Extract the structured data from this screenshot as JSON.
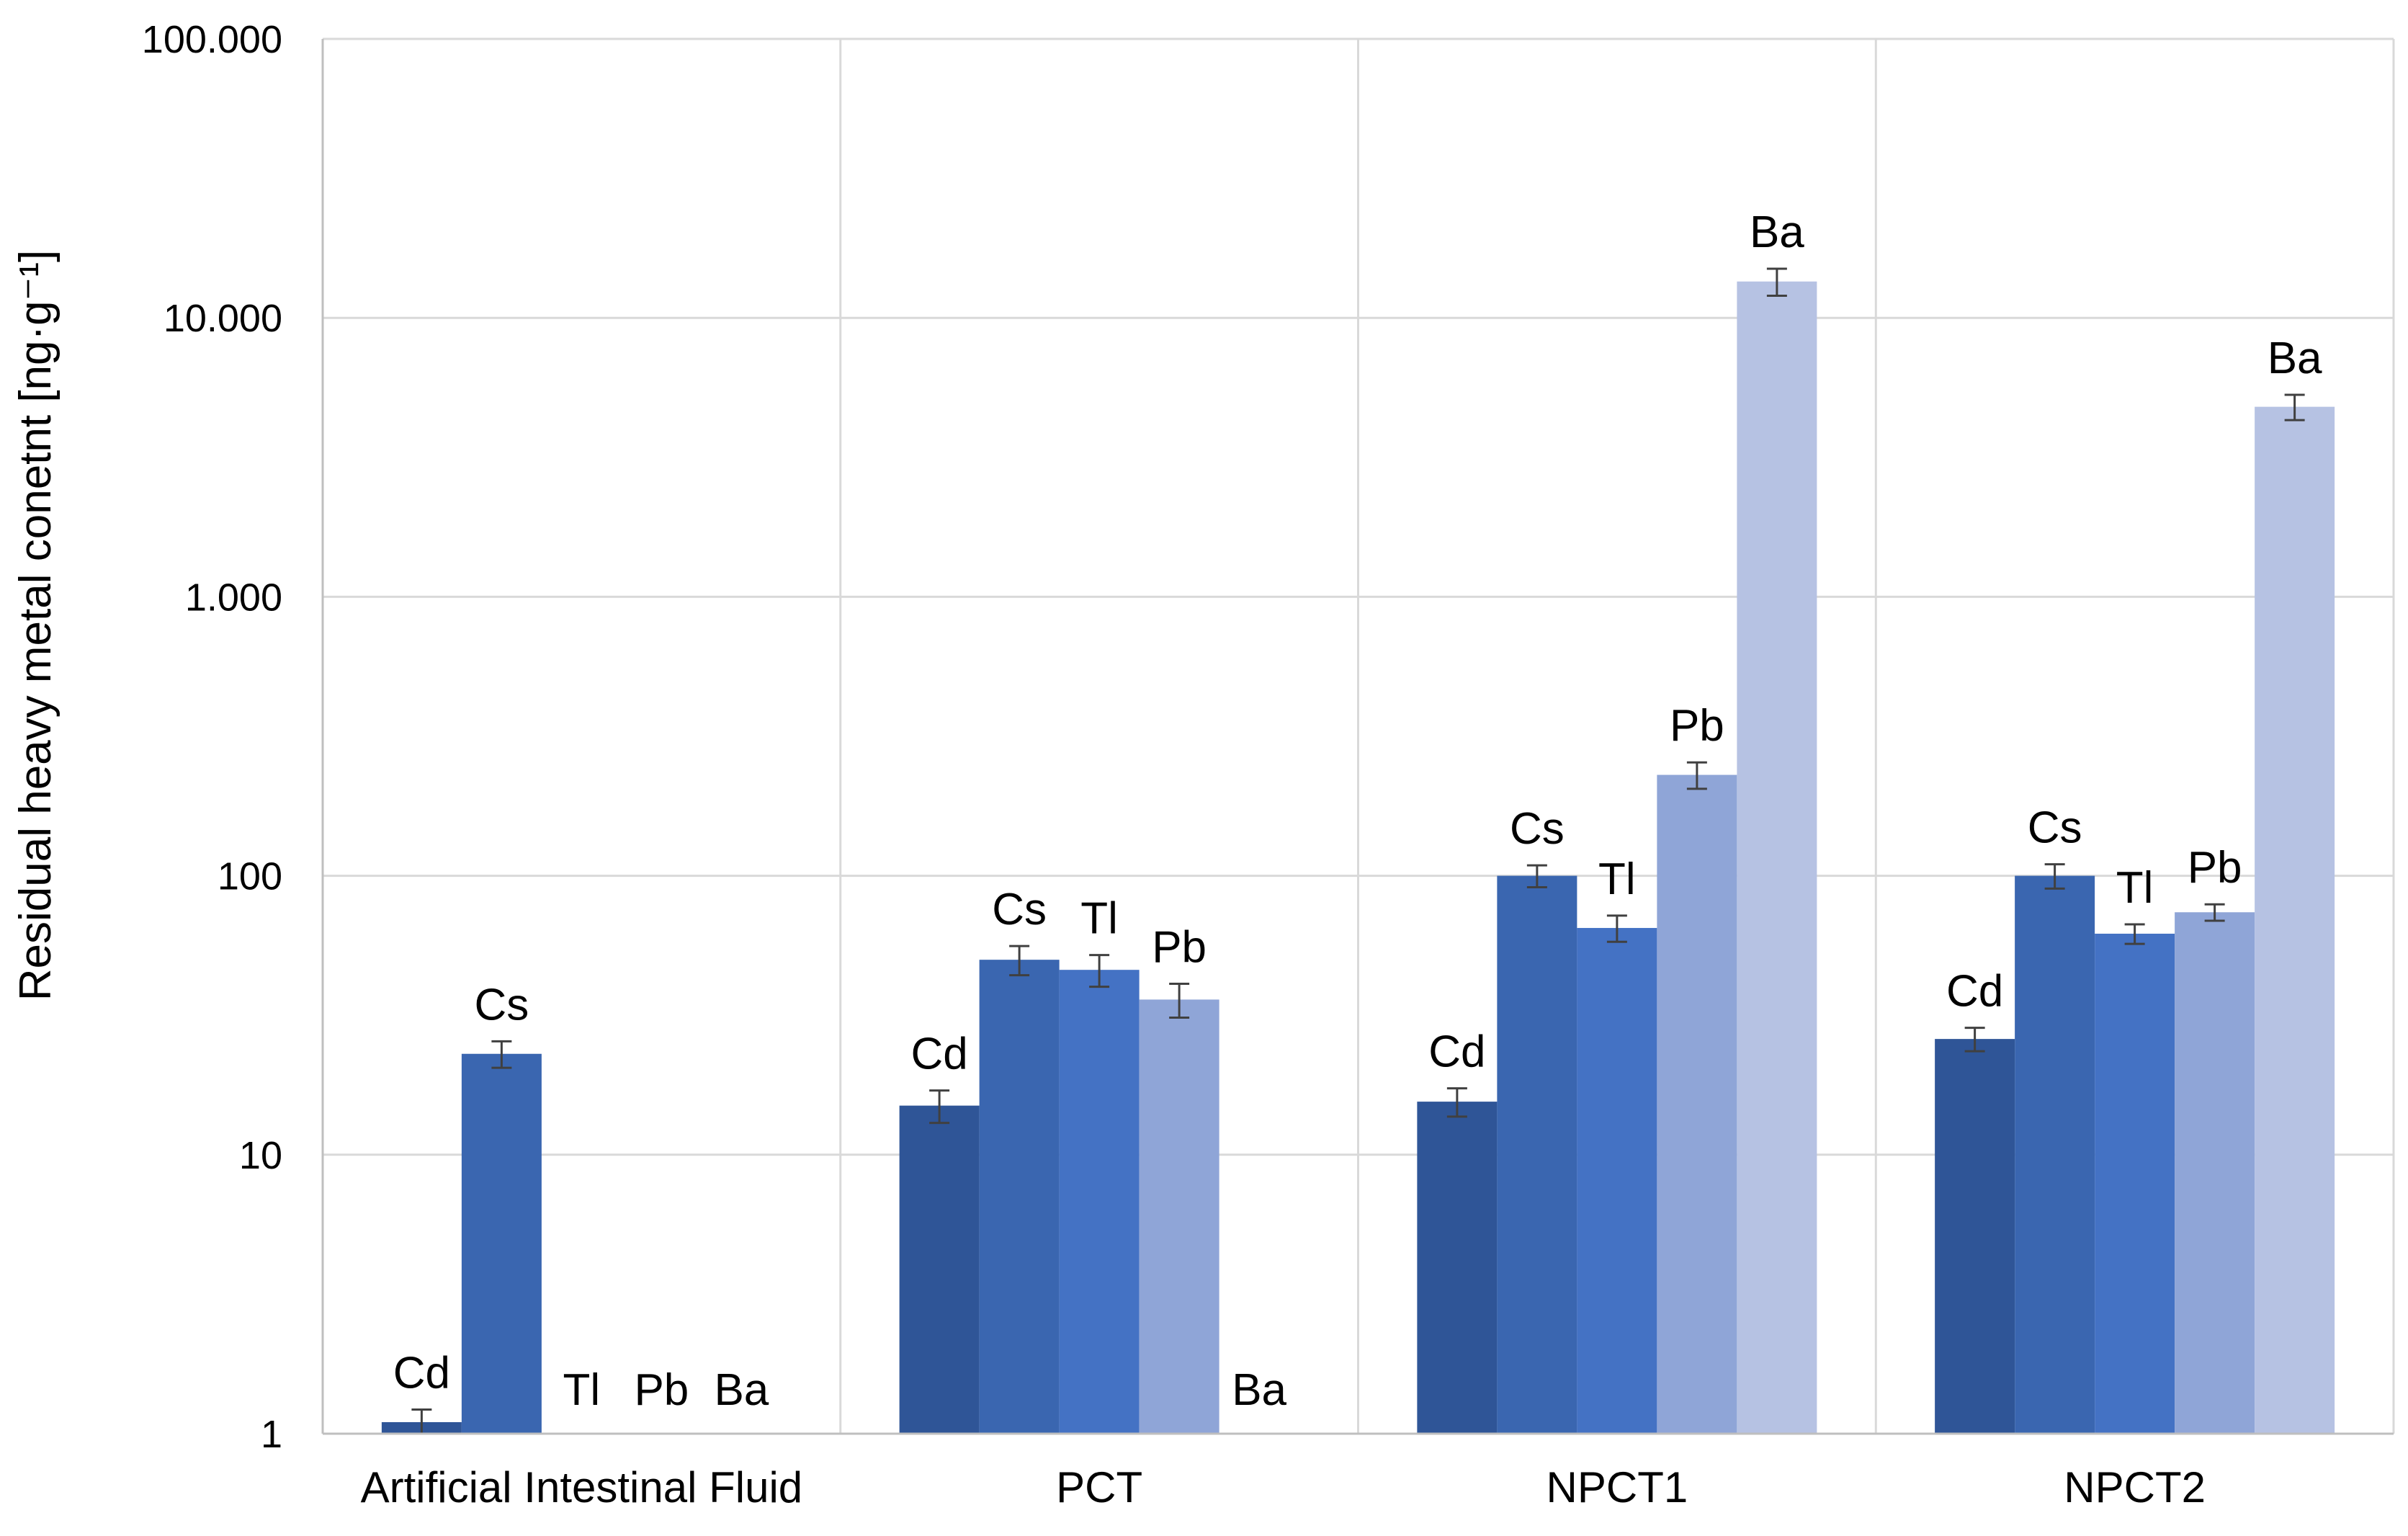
{
  "chart_data": {
    "type": "bar",
    "title": "",
    "xlabel": "",
    "ylabel": "Residual heavy metal conetnt [ng·g⁻¹]",
    "yscale": "log",
    "ylim": [
      1,
      100000
    ],
    "yticks": [
      {
        "value": 1,
        "label": "1"
      },
      {
        "value": 10,
        "label": "10"
      },
      {
        "value": 100,
        "label": "100"
      },
      {
        "value": 1000,
        "label": "1.000"
      },
      {
        "value": 10000,
        "label": "10.000"
      },
      {
        "value": 100000,
        "label": "100.000"
      }
    ],
    "grid": true,
    "legend": "none",
    "categories": [
      "Artificial Intestinal Fluid",
      "PCT",
      "NPCT1",
      "NPCT2"
    ],
    "series": [
      {
        "name": "Cd",
        "color": "#2F5597",
        "values": [
          1.1,
          15,
          15.5,
          26
        ],
        "errors": [
          0.12,
          2,
          1.8,
          2.5
        ]
      },
      {
        "name": "Cs",
        "color": "#3A66B0",
        "values": [
          23,
          50,
          100,
          100
        ],
        "errors": [
          2.5,
          6,
          9,
          10
        ]
      },
      {
        "name": "Tl",
        "color": "#4472C4",
        "values": [
          null,
          46,
          65,
          62
        ],
        "errors": [
          0,
          6,
          7,
          5
        ]
      },
      {
        "name": "Pb",
        "color": "#8FA5D7",
        "values": [
          null,
          36,
          230,
          74
        ],
        "errors": [
          0,
          5,
          25,
          5
        ]
      },
      {
        "name": "Ba",
        "color": "#B6C2E3",
        "values": [
          null,
          null,
          13500,
          4800
        ],
        "errors": [
          0,
          0,
          1500,
          500
        ]
      }
    ]
  }
}
